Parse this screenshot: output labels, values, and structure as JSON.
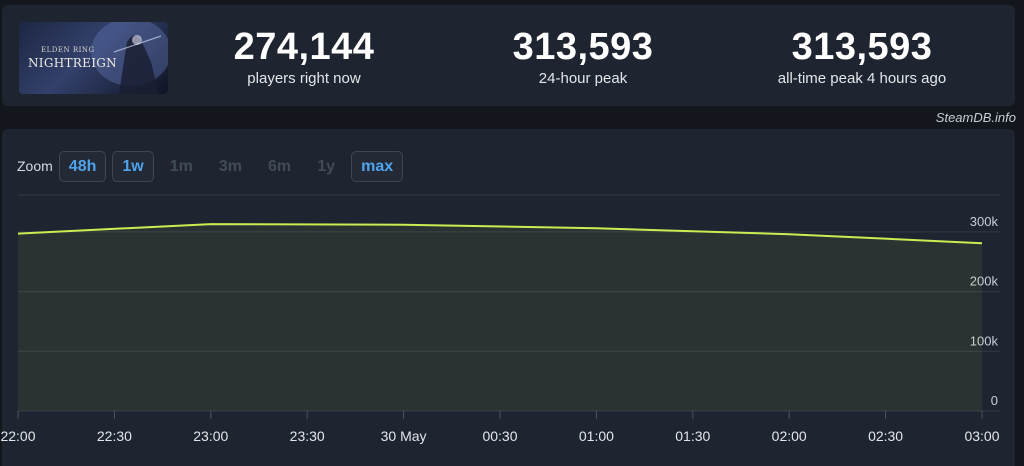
{
  "game": {
    "banner_subtitle": "ELDEN RING",
    "banner_title": "NIGHTREIGN"
  },
  "stats": {
    "current": {
      "value": "274,144",
      "label": "players right now"
    },
    "peak_24h": {
      "value": "313,593",
      "label": "24-hour peak"
    },
    "all_time": {
      "value": "313,593",
      "label": "all-time peak 4 hours ago"
    }
  },
  "credit": "SteamDB.info",
  "zoom": {
    "label": "Zoom",
    "options": [
      {
        "label": "48h",
        "enabled": true
      },
      {
        "label": "1w",
        "enabled": true
      },
      {
        "label": "1m",
        "enabled": false
      },
      {
        "label": "3m",
        "enabled": false
      },
      {
        "label": "6m",
        "enabled": false
      },
      {
        "label": "1y",
        "enabled": false
      },
      {
        "label": "max",
        "enabled": true
      }
    ]
  },
  "colors": {
    "line": "#c8ee52",
    "background": "#1f2530",
    "accent": "#4fa3ec"
  },
  "chart_data": {
    "type": "area",
    "x_ticks": [
      "22:00",
      "22:30",
      "23:00",
      "23:30",
      "30 May",
      "00:30",
      "01:00",
      "01:30",
      "02:00",
      "02:30",
      "03:00"
    ],
    "y_ticks": [
      "0",
      "100k",
      "200k",
      "300k"
    ],
    "ylim": [
      0,
      350000
    ],
    "x": [
      "22:00",
      "23:00",
      "00:00",
      "01:00",
      "02:00",
      "03:00"
    ],
    "values": [
      297000,
      313000,
      312000,
      306000,
      296000,
      281000
    ],
    "grid": true
  }
}
